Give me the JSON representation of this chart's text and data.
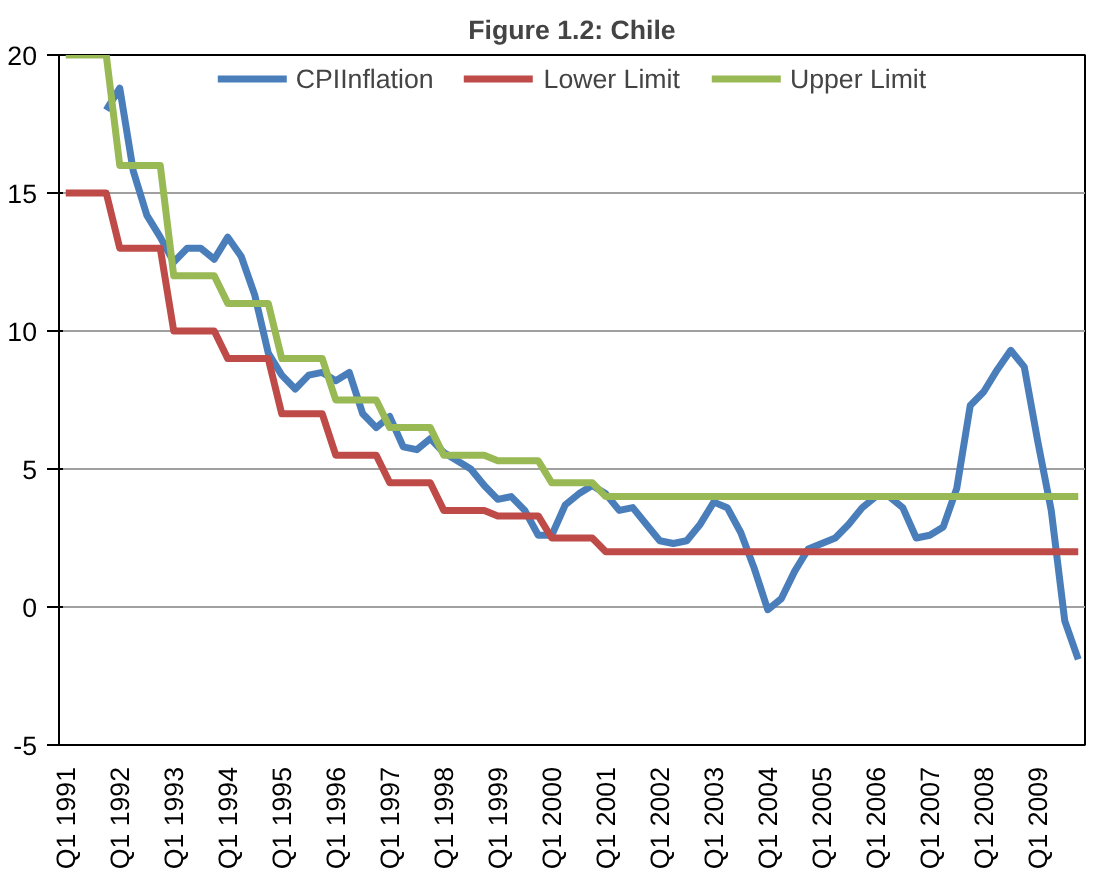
{
  "chart_data": {
    "type": "line",
    "title": "Figure 1.2: Chile",
    "categories": [
      "Q1 1991",
      null,
      null,
      null,
      "Q1 1992",
      null,
      null,
      null,
      "Q1 1993",
      null,
      null,
      null,
      "Q1 1994",
      null,
      null,
      null,
      "Q1 1995",
      null,
      null,
      null,
      "Q1 1996",
      null,
      null,
      null,
      "Q1 1997",
      null,
      null,
      null,
      "Q1 1998",
      null,
      null,
      null,
      "Q1 1999",
      null,
      null,
      null,
      "Q1 2000",
      null,
      null,
      null,
      "Q1 2001",
      null,
      null,
      null,
      "Q1 2002",
      null,
      null,
      null,
      "Q1 2003",
      null,
      null,
      null,
      "Q1 2004",
      null,
      null,
      null,
      "Q1 2005",
      null,
      null,
      null,
      "Q1 2006",
      null,
      null,
      null,
      "Q1 2007",
      null,
      null,
      null,
      "Q1 2008",
      null,
      null,
      null,
      "Q1 2009",
      null,
      null,
      null
    ],
    "series": [
      {
        "name": "CPIInflation",
        "color": "#4a7ebb",
        "values": [
          null,
          null,
          null,
          18.0,
          18.8,
          15.8,
          14.2,
          13.4,
          12.5,
          13.0,
          13.0,
          12.6,
          13.4,
          12.7,
          11.3,
          9.2,
          8.4,
          7.9,
          8.4,
          8.5,
          8.2,
          8.5,
          7.0,
          6.5,
          6.9,
          5.8,
          5.7,
          6.1,
          5.6,
          5.3,
          5.0,
          4.4,
          3.9,
          4.0,
          3.5,
          2.6,
          2.6,
          3.7,
          4.1,
          4.4,
          4.1,
          3.5,
          3.6,
          3.0,
          2.4,
          2.3,
          2.4,
          3.0,
          3.8,
          3.6,
          2.7,
          1.4,
          -0.1,
          0.3,
          1.3,
          2.1,
          2.3,
          2.5,
          3.0,
          3.6,
          4.0,
          4.0,
          3.6,
          2.5,
          2.6,
          2.9,
          4.3,
          7.3,
          7.8,
          8.6,
          9.3,
          8.7,
          6.0,
          3.5,
          -0.5,
          -1.9
        ]
      },
      {
        "name": "Lower Limit",
        "color": "#be4b48",
        "values": [
          15,
          15,
          15,
          15,
          13,
          13,
          13,
          13,
          10,
          10,
          10,
          10,
          9,
          9,
          9,
          9,
          7,
          7,
          7,
          7,
          5.5,
          5.5,
          5.5,
          5.5,
          4.5,
          4.5,
          4.5,
          4.5,
          3.5,
          3.5,
          3.5,
          3.5,
          3.3,
          3.3,
          3.3,
          3.3,
          2.5,
          2.5,
          2.5,
          2.5,
          2,
          2,
          2,
          2,
          2,
          2,
          2,
          2,
          2,
          2,
          2,
          2,
          2,
          2,
          2,
          2,
          2,
          2,
          2,
          2,
          2,
          2,
          2,
          2,
          2,
          2,
          2,
          2,
          2,
          2,
          2,
          2,
          2,
          2,
          2,
          2
        ]
      },
      {
        "name": "Upper Limit",
        "color": "#98b954",
        "values": [
          20,
          20,
          20,
          20,
          16,
          16,
          16,
          16,
          12,
          12,
          12,
          12,
          11,
          11,
          11,
          11,
          9,
          9,
          9,
          9,
          7.5,
          7.5,
          7.5,
          7.5,
          6.5,
          6.5,
          6.5,
          6.5,
          5.5,
          5.5,
          5.5,
          5.5,
          5.3,
          5.3,
          5.3,
          5.3,
          4.5,
          4.5,
          4.5,
          4.5,
          4,
          4,
          4,
          4,
          4,
          4,
          4,
          4,
          4,
          4,
          4,
          4,
          4,
          4,
          4,
          4,
          4,
          4,
          4,
          4,
          4,
          4,
          4,
          4,
          4,
          4,
          4,
          4,
          4,
          4,
          4,
          4,
          4,
          4,
          4,
          4
        ]
      }
    ],
    "ylim": [
      -5,
      20
    ],
    "yticks": [
      -5,
      0,
      5,
      10,
      15,
      20
    ],
    "grid": "y",
    "legend": "top",
    "marker": "none",
    "line_style": "solid"
  }
}
